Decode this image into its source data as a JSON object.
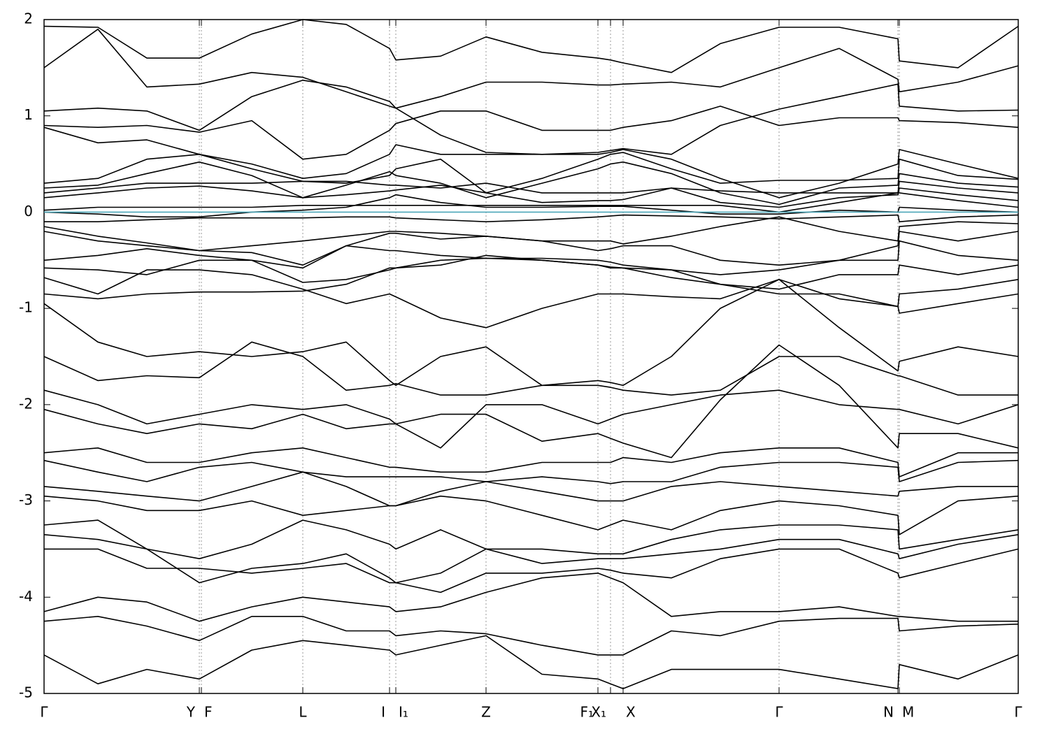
{
  "chart_data": {
    "type": "line",
    "x": [
      0,
      77,
      147,
      222,
      297,
      370,
      432,
      494,
      503,
      567,
      632,
      712,
      792,
      810,
      828,
      897,
      967,
      1051,
      1137,
      1221,
      1223,
      1307,
      1393
    ],
    "xlim": [
      0,
      1393
    ],
    "xticks": [
      {
        "value": 0,
        "label": "Γ"
      },
      {
        "value": 222,
        "label": "Y"
      },
      {
        "value": 225,
        "label": "F"
      },
      {
        "value": 370,
        "label": "L"
      },
      {
        "value": 494,
        "label": "I"
      },
      {
        "value": 503,
        "label": "I₁"
      },
      {
        "value": 632,
        "label": "Z"
      },
      {
        "value": 792,
        "label": "F₁"
      },
      {
        "value": 810,
        "label": "X₁"
      },
      {
        "value": 828,
        "label": "X"
      },
      {
        "value": 1051,
        "label": "Γ"
      },
      {
        "value": 1221,
        "label": "N"
      },
      {
        "value": 1223,
        "label": "M"
      },
      {
        "value": 1393,
        "label": "Γ"
      }
    ],
    "ylim": [
      -5,
      2
    ],
    "yticks": [
      2,
      1,
      0,
      -1,
      -2,
      -3,
      -4,
      -5
    ],
    "xgrid": true,
    "series": [
      {
        "color": "#000000",
        "values": [
          1.93,
          1.92,
          1.6,
          1.6,
          1.85,
          2.0,
          1.95,
          1.7,
          1.58,
          1.62,
          1.82,
          1.66,
          1.6,
          1.58,
          1.55,
          1.45,
          1.75,
          1.92,
          1.92,
          1.8,
          1.57,
          1.5,
          1.93
        ]
      },
      {
        "color": "#000000",
        "values": [
          1.5,
          1.9,
          1.3,
          1.33,
          1.45,
          1.4,
          1.25,
          1.1,
          1.08,
          1.2,
          1.35,
          1.35,
          1.32,
          1.32,
          1.33,
          1.35,
          1.3,
          1.5,
          1.7,
          1.38,
          1.25,
          1.35,
          1.52
        ]
      },
      {
        "color": "#000000",
        "values": [
          1.05,
          1.08,
          1.05,
          0.85,
          1.2,
          1.37,
          1.3,
          1.15,
          1.08,
          0.8,
          0.62,
          0.6,
          0.62,
          0.64,
          0.66,
          0.6,
          0.9,
          1.07,
          1.2,
          1.33,
          1.1,
          1.05,
          1.06
        ]
      },
      {
        "color": "#000000",
        "values": [
          0.9,
          0.88,
          0.9,
          0.83,
          0.95,
          0.55,
          0.6,
          0.85,
          0.92,
          1.05,
          1.05,
          0.85,
          0.85,
          0.85,
          0.88,
          0.95,
          1.1,
          0.9,
          0.98,
          0.98,
          0.95,
          0.93,
          0.88
        ]
      },
      {
        "color": "#000000",
        "values": [
          0.88,
          0.72,
          0.75,
          0.6,
          0.5,
          0.35,
          0.4,
          0.6,
          0.7,
          0.6,
          0.6,
          0.6,
          0.6,
          0.62,
          0.65,
          0.55,
          0.35,
          0.15,
          0.3,
          0.5,
          0.65,
          0.5,
          0.35
        ]
      },
      {
        "color": "#000000",
        "values": [
          0.3,
          0.35,
          0.55,
          0.6,
          0.45,
          0.32,
          0.3,
          0.38,
          0.45,
          0.55,
          0.2,
          0.35,
          0.55,
          0.6,
          0.62,
          0.45,
          0.3,
          0.33,
          0.33,
          0.35,
          0.55,
          0.38,
          0.34
        ]
      },
      {
        "color": "#000000",
        "values": [
          0.25,
          0.28,
          0.4,
          0.52,
          0.38,
          0.15,
          0.28,
          0.42,
          0.38,
          0.3,
          0.15,
          0.3,
          0.45,
          0.5,
          0.52,
          0.4,
          0.2,
          0.08,
          0.25,
          0.28,
          0.4,
          0.3,
          0.26
        ]
      },
      {
        "color": "#000000",
        "values": [
          0.2,
          0.25,
          0.3,
          0.3,
          0.3,
          0.32,
          0.32,
          0.28,
          0.28,
          0.25,
          0.3,
          0.2,
          0.2,
          0.2,
          0.2,
          0.25,
          0.22,
          0.2,
          0.2,
          0.2,
          0.32,
          0.25,
          0.2
        ]
      },
      {
        "color": "#000000",
        "values": [
          0.15,
          0.2,
          0.25,
          0.27,
          0.22,
          0.15,
          0.18,
          0.22,
          0.23,
          0.28,
          0.2,
          0.1,
          0.12,
          0.12,
          0.13,
          0.25,
          0.1,
          0.05,
          0.15,
          0.18,
          0.25,
          0.18,
          0.12
        ]
      },
      {
        "color": "#000000",
        "values": [
          0.02,
          0.05,
          0.05,
          0.05,
          0.05,
          0.07,
          0.07,
          0.07,
          0.07,
          0.07,
          0.07,
          0.07,
          0.07,
          0.07,
          0.07,
          0.07,
          0.07,
          0.0,
          0.1,
          0.2,
          0.2,
          0.12,
          0.05
        ]
      },
      {
        "color": "#000000",
        "values": [
          0.0,
          -0.02,
          -0.05,
          -0.05,
          0.0,
          0.02,
          0.05,
          0.15,
          0.18,
          0.1,
          0.05,
          0.05,
          0.06,
          0.06,
          0.06,
          0.02,
          -0.02,
          -0.02,
          0.02,
          0.0,
          0.05,
          0.02,
          0.0
        ]
      },
      {
        "color": "#000000",
        "values": [
          -0.1,
          -0.1,
          -0.08,
          -0.06,
          -0.06,
          -0.06,
          -0.05,
          -0.05,
          -0.06,
          -0.08,
          -0.1,
          -0.08,
          -0.05,
          -0.04,
          -0.03,
          -0.04,
          -0.05,
          -0.07,
          -0.05,
          -0.03,
          -0.1,
          -0.05,
          -0.03
        ]
      },
      {
        "color": "#000000",
        "values": [
          -0.15,
          -0.25,
          -0.32,
          -0.4,
          -0.35,
          -0.3,
          -0.25,
          -0.2,
          -0.2,
          -0.22,
          -0.25,
          -0.3,
          -0.3,
          -0.3,
          -0.33,
          -0.25,
          -0.15,
          -0.05,
          -0.2,
          -0.3,
          -0.15,
          -0.1,
          -0.12
        ]
      },
      {
        "color": "#000000",
        "values": [
          -0.2,
          -0.3,
          -0.35,
          -0.4,
          -0.42,
          -0.55,
          -0.35,
          -0.22,
          -0.22,
          -0.28,
          -0.25,
          -0.3,
          -0.4,
          -0.38,
          -0.35,
          -0.35,
          -0.5,
          -0.55,
          -0.5,
          -0.35,
          -0.2,
          -0.3,
          -0.2
        ]
      },
      {
        "color": "#000000",
        "values": [
          -0.5,
          -0.45,
          -0.38,
          -0.45,
          -0.5,
          -0.58,
          -0.35,
          -0.4,
          -0.4,
          -0.45,
          -0.48,
          -0.48,
          -0.5,
          -0.52,
          -0.55,
          -0.6,
          -0.65,
          -0.6,
          -0.5,
          -0.5,
          -0.3,
          -0.45,
          -0.5
        ]
      },
      {
        "color": "#000000",
        "values": [
          -0.58,
          -0.6,
          -0.65,
          -0.5,
          -0.5,
          -0.73,
          -0.7,
          -0.6,
          -0.58,
          -0.55,
          -0.45,
          -0.5,
          -0.55,
          -0.57,
          -0.58,
          -0.68,
          -0.75,
          -0.8,
          -0.65,
          -0.65,
          -0.55,
          -0.65,
          -0.55
        ]
      },
      {
        "color": "#000000",
        "values": [
          -0.68,
          -0.85,
          -0.6,
          -0.6,
          -0.65,
          -0.8,
          -0.95,
          -0.85,
          -0.88,
          -1.1,
          -1.2,
          -1.0,
          -0.85,
          -0.85,
          -0.85,
          -0.88,
          -0.9,
          -0.7,
          -0.9,
          -0.98,
          -0.85,
          -0.8,
          -0.7
        ]
      },
      {
        "color": "#000000",
        "values": [
          -0.85,
          -0.9,
          -0.85,
          -0.83,
          -0.83,
          -0.82,
          -0.75,
          -0.58,
          -0.58,
          -0.5,
          -0.48,
          -0.5,
          -0.55,
          -0.58,
          -0.58,
          -0.6,
          -0.75,
          -0.85,
          -0.85,
          -0.98,
          -1.05,
          -0.95,
          -0.85
        ]
      },
      {
        "color": "#000000",
        "values": [
          -0.95,
          -1.35,
          -1.5,
          -1.45,
          -1.5,
          -1.45,
          -1.35,
          -1.75,
          -1.8,
          -1.5,
          -1.4,
          -1.8,
          -1.75,
          -1.77,
          -1.8,
          -1.5,
          -1.0,
          -0.7,
          -1.2,
          -1.65,
          -1.55,
          -1.4,
          -1.5
        ]
      },
      {
        "color": "#000000",
        "values": [
          -1.5,
          -1.75,
          -1.7,
          -1.72,
          -1.35,
          -1.5,
          -1.85,
          -1.8,
          -1.78,
          -1.9,
          -1.9,
          -1.8,
          -1.8,
          -1.82,
          -1.85,
          -1.9,
          -1.85,
          -1.5,
          -1.5,
          -1.7,
          -1.7,
          -1.9,
          -1.9
        ]
      },
      {
        "color": "#000000",
        "values": [
          -1.85,
          -2.0,
          -2.2,
          -2.1,
          -2.0,
          -2.05,
          -2.0,
          -2.15,
          -2.2,
          -2.45,
          -2.0,
          -2.0,
          -2.2,
          -2.15,
          -2.1,
          -2.0,
          -1.9,
          -1.85,
          -2.0,
          -2.05,
          -2.05,
          -2.2,
          -2.0
        ]
      },
      {
        "color": "#000000",
        "values": [
          -2.05,
          -2.2,
          -2.3,
          -2.2,
          -2.25,
          -2.1,
          -2.25,
          -2.2,
          -2.2,
          -2.1,
          -2.1,
          -2.38,
          -2.3,
          -2.35,
          -2.4,
          -2.55,
          -1.95,
          -1.38,
          -1.8,
          -2.45,
          -2.3,
          -2.3,
          -2.45
        ]
      },
      {
        "color": "#000000",
        "values": [
          -2.5,
          -2.45,
          -2.6,
          -2.6,
          -2.5,
          -2.45,
          -2.55,
          -2.65,
          -2.65,
          -2.7,
          -2.7,
          -2.6,
          -2.6,
          -2.6,
          -2.55,
          -2.6,
          -2.5,
          -2.45,
          -2.45,
          -2.6,
          -2.75,
          -2.5,
          -2.5
        ]
      },
      {
        "color": "#000000",
        "values": [
          -2.58,
          -2.7,
          -2.8,
          -2.65,
          -2.6,
          -2.7,
          -2.75,
          -2.75,
          -2.75,
          -2.75,
          -2.8,
          -2.75,
          -2.8,
          -2.82,
          -2.8,
          -2.8,
          -2.65,
          -2.6,
          -2.6,
          -2.65,
          -2.8,
          -2.6,
          -2.58
        ]
      },
      {
        "color": "#000000",
        "values": [
          -2.85,
          -2.9,
          -2.95,
          -3.0,
          -2.85,
          -2.7,
          -2.85,
          -3.05,
          -3.05,
          -2.9,
          -2.8,
          -2.9,
          -3.0,
          -3.0,
          -3.0,
          -2.85,
          -2.8,
          -2.85,
          -2.9,
          -2.95,
          -2.9,
          -2.85,
          -2.85
        ]
      },
      {
        "color": "#000000",
        "values": [
          -2.95,
          -3.0,
          -3.1,
          -3.1,
          -3.0,
          -3.15,
          -3.1,
          -3.05,
          -3.05,
          -2.95,
          -3.0,
          -3.15,
          -3.3,
          -3.25,
          -3.2,
          -3.3,
          -3.1,
          -3.0,
          -3.05,
          -3.15,
          -3.35,
          -3.0,
          -2.95
        ]
      },
      {
        "color": "#000000",
        "values": [
          -3.25,
          -3.2,
          -3.5,
          -3.6,
          -3.45,
          -3.2,
          -3.3,
          -3.45,
          -3.5,
          -3.3,
          -3.5,
          -3.5,
          -3.55,
          -3.55,
          -3.55,
          -3.4,
          -3.3,
          -3.25,
          -3.25,
          -3.3,
          -3.5,
          -3.4,
          -3.3
        ]
      },
      {
        "color": "#000000",
        "values": [
          -3.35,
          -3.4,
          -3.5,
          -3.85,
          -3.7,
          -3.65,
          -3.55,
          -3.8,
          -3.85,
          -3.75,
          -3.5,
          -3.65,
          -3.6,
          -3.6,
          -3.6,
          -3.55,
          -3.5,
          -3.4,
          -3.4,
          -3.55,
          -3.6,
          -3.45,
          -3.35
        ]
      },
      {
        "color": "#000000",
        "values": [
          -3.5,
          -3.5,
          -3.7,
          -3.7,
          -3.75,
          -3.7,
          -3.65,
          -3.85,
          -3.85,
          -3.95,
          -3.75,
          -3.75,
          -3.7,
          -3.72,
          -3.75,
          -3.8,
          -3.6,
          -3.5,
          -3.5,
          -3.75,
          -3.8,
          -3.65,
          -3.5
        ]
      },
      {
        "color": "#000000",
        "values": [
          -4.15,
          -4.0,
          -4.05,
          -4.25,
          -4.1,
          -4.0,
          -4.05,
          -4.1,
          -4.15,
          -4.1,
          -3.95,
          -3.8,
          -3.75,
          -3.8,
          -3.85,
          -4.2,
          -4.15,
          -4.15,
          -4.1,
          -4.2,
          -4.2,
          -4.25,
          -4.25
        ]
      },
      {
        "color": "#000000",
        "values": [
          -4.25,
          -4.2,
          -4.3,
          -4.45,
          -4.2,
          -4.2,
          -4.35,
          -4.35,
          -4.4,
          -4.35,
          -4.38,
          -4.5,
          -4.6,
          -4.6,
          -4.6,
          -4.35,
          -4.4,
          -4.25,
          -4.22,
          -4.22,
          -4.35,
          -4.3,
          -4.28
        ]
      },
      {
        "color": "#000000",
        "values": [
          -4.6,
          -4.9,
          -4.75,
          -4.85,
          -4.55,
          -4.45,
          -4.5,
          -4.55,
          -4.6,
          -4.5,
          -4.4,
          -4.8,
          -4.85,
          -4.9,
          -4.95,
          -4.75,
          -4.75,
          -4.75,
          -4.85,
          -4.95,
          -4.7,
          -4.85,
          -4.6
        ]
      },
      {
        "color": "#4aa6b8",
        "values": [
          0,
          0,
          0,
          0,
          0,
          0,
          0,
          0,
          0,
          0,
          0,
          0,
          0,
          0,
          0,
          0,
          0,
          0,
          0,
          0,
          0,
          0,
          0
        ]
      }
    ]
  }
}
